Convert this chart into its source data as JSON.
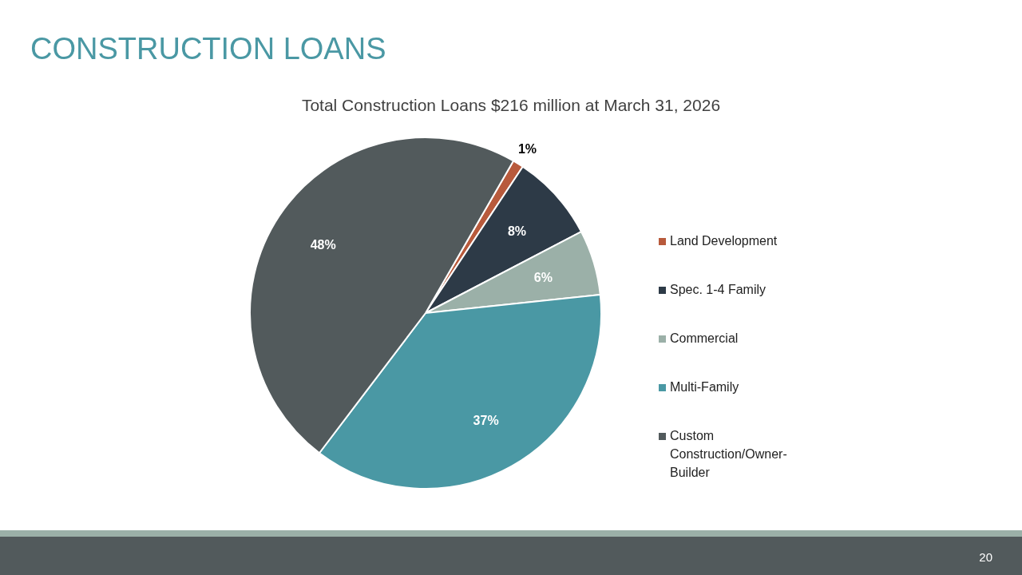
{
  "chart_data": {
    "type": "pie",
    "title": "CONSTRUCTION LOANS",
    "subtitle": "Total Construction Loans $216 million at March 31, 2026",
    "categories": [
      "Land Development",
      "Spec. 1-4 Family",
      "Commercial",
      "Multi-Family",
      "Custom Construction/Owner-Builder"
    ],
    "values": [
      1,
      8,
      6,
      37,
      48
    ],
    "colors": [
      "#b85a3c",
      "#2d3a47",
      "#9bb0a8",
      "#4a98a4",
      "#525a5c"
    ],
    "value_labels": [
      "1%",
      "8%",
      "6%",
      "37%",
      "48%"
    ],
    "legend": "right",
    "annotations": [
      "20"
    ]
  }
}
